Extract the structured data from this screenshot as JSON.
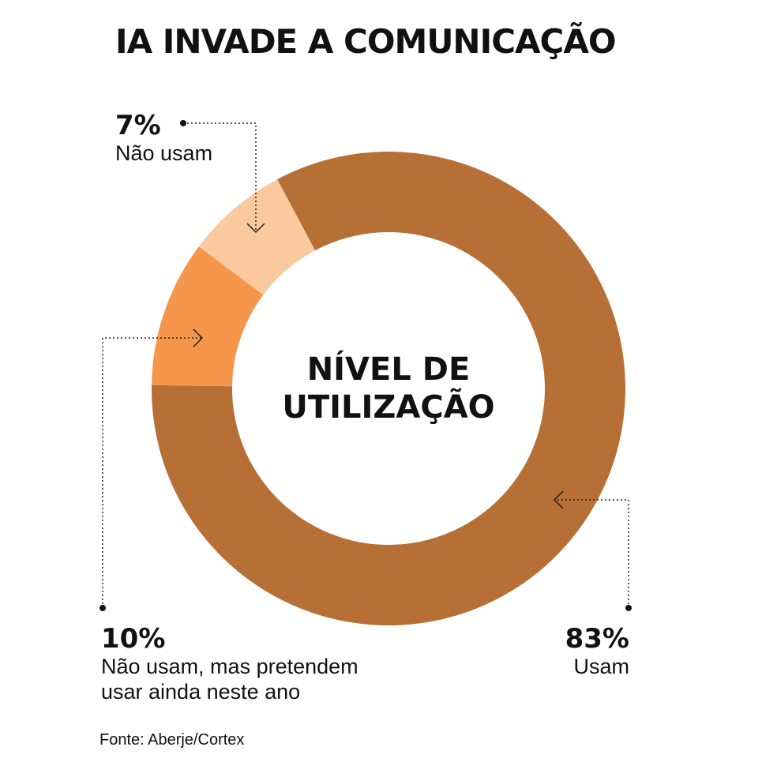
{
  "title": "IA INVADE A COMUNICAÇÃO",
  "colors": {
    "usam": "#B66F34",
    "pretendem": "#F5964A",
    "nao_usam": "#FAC99E",
    "text": "#111111"
  },
  "chart_data": {
    "type": "pie",
    "center_label": [
      "NÍVEL DE",
      "UTILIZAÇÃO"
    ],
    "slices": [
      {
        "label": "Usam",
        "value": 83,
        "value_label": "83%",
        "color": "#B66F34"
      },
      {
        "label": "Não usam, mas pretendem usar ainda neste ano",
        "value": 10,
        "value_label": "10%",
        "color": "#F5964A"
      },
      {
        "label": "Não usam",
        "value": 7,
        "value_label": "7%",
        "color": "#FAC99E"
      }
    ]
  },
  "callouts": {
    "nao_usam": {
      "pct": "7%",
      "lines": [
        "Não usam"
      ]
    },
    "pretendem": {
      "pct": "10%",
      "lines": [
        "Não usam, mas pretendem",
        "usar ainda neste ano"
      ]
    },
    "usam": {
      "pct": "83%",
      "lines": [
        "Usam"
      ]
    }
  },
  "source": "Fonte: Aberje/Cortex"
}
